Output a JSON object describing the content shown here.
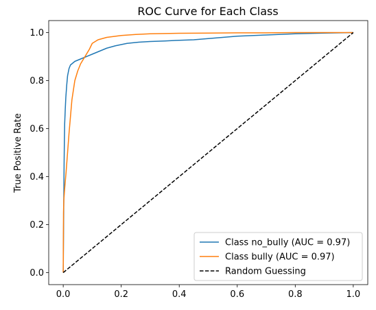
{
  "chart_data": {
    "type": "line",
    "title": "ROC Curve for Each Class",
    "xlabel": "",
    "ylabel": "True Positive Rate",
    "xlim": [
      -0.05,
      1.05
    ],
    "ylim": [
      -0.05,
      1.05
    ],
    "x_ticks": [
      "0.0",
      "0.2",
      "0.4",
      "0.6",
      "0.8",
      "1.0"
    ],
    "y_ticks": [
      "0.0",
      "0.2",
      "0.4",
      "0.6",
      "0.8",
      "1.0"
    ],
    "grid": false,
    "legend_position": "lower-right",
    "series": [
      {
        "name": "Class no_bully (AUC = 0.97)",
        "color": "#1f77b4",
        "dash": "solid",
        "x": [
          0.0,
          0.002,
          0.003,
          0.004,
          0.005,
          0.007,
          0.009,
          0.012,
          0.015,
          0.02,
          0.025,
          0.03,
          0.04,
          0.05,
          0.06,
          0.08,
          0.1,
          0.12,
          0.15,
          0.18,
          0.22,
          0.26,
          0.3,
          0.35,
          0.4,
          0.45,
          0.5,
          0.55,
          0.6,
          0.7,
          0.8,
          0.9,
          1.0
        ],
        "y": [
          0.0,
          0.3,
          0.45,
          0.55,
          0.62,
          0.68,
          0.73,
          0.78,
          0.82,
          0.85,
          0.865,
          0.87,
          0.88,
          0.885,
          0.89,
          0.9,
          0.91,
          0.92,
          0.935,
          0.945,
          0.955,
          0.96,
          0.963,
          0.965,
          0.968,
          0.97,
          0.975,
          0.98,
          0.985,
          0.99,
          0.995,
          0.998,
          1.0
        ]
      },
      {
        "name": "Class bully (AUC = 0.97)",
        "color": "#ff7f0e",
        "dash": "solid",
        "x": [
          0.0,
          0.001,
          0.002,
          0.005,
          0.01,
          0.015,
          0.02,
          0.025,
          0.03,
          0.035,
          0.04,
          0.05,
          0.06,
          0.07,
          0.08,
          0.09,
          0.1,
          0.12,
          0.15,
          0.2,
          0.25,
          0.3,
          0.4,
          0.5,
          0.6,
          0.7,
          0.8,
          0.9,
          1.0
        ],
        "y": [
          0.0,
          0.25,
          0.3,
          0.35,
          0.42,
          0.5,
          0.58,
          0.65,
          0.72,
          0.76,
          0.8,
          0.84,
          0.87,
          0.89,
          0.91,
          0.93,
          0.955,
          0.97,
          0.98,
          0.988,
          0.992,
          0.995,
          0.997,
          0.998,
          0.999,
          0.999,
          1.0,
          1.0,
          1.0
        ]
      },
      {
        "name": "Random Guessing",
        "color": "#000000",
        "dash": "dashed",
        "x": [
          0.0,
          1.0
        ],
        "y": [
          0.0,
          1.0
        ]
      }
    ]
  }
}
